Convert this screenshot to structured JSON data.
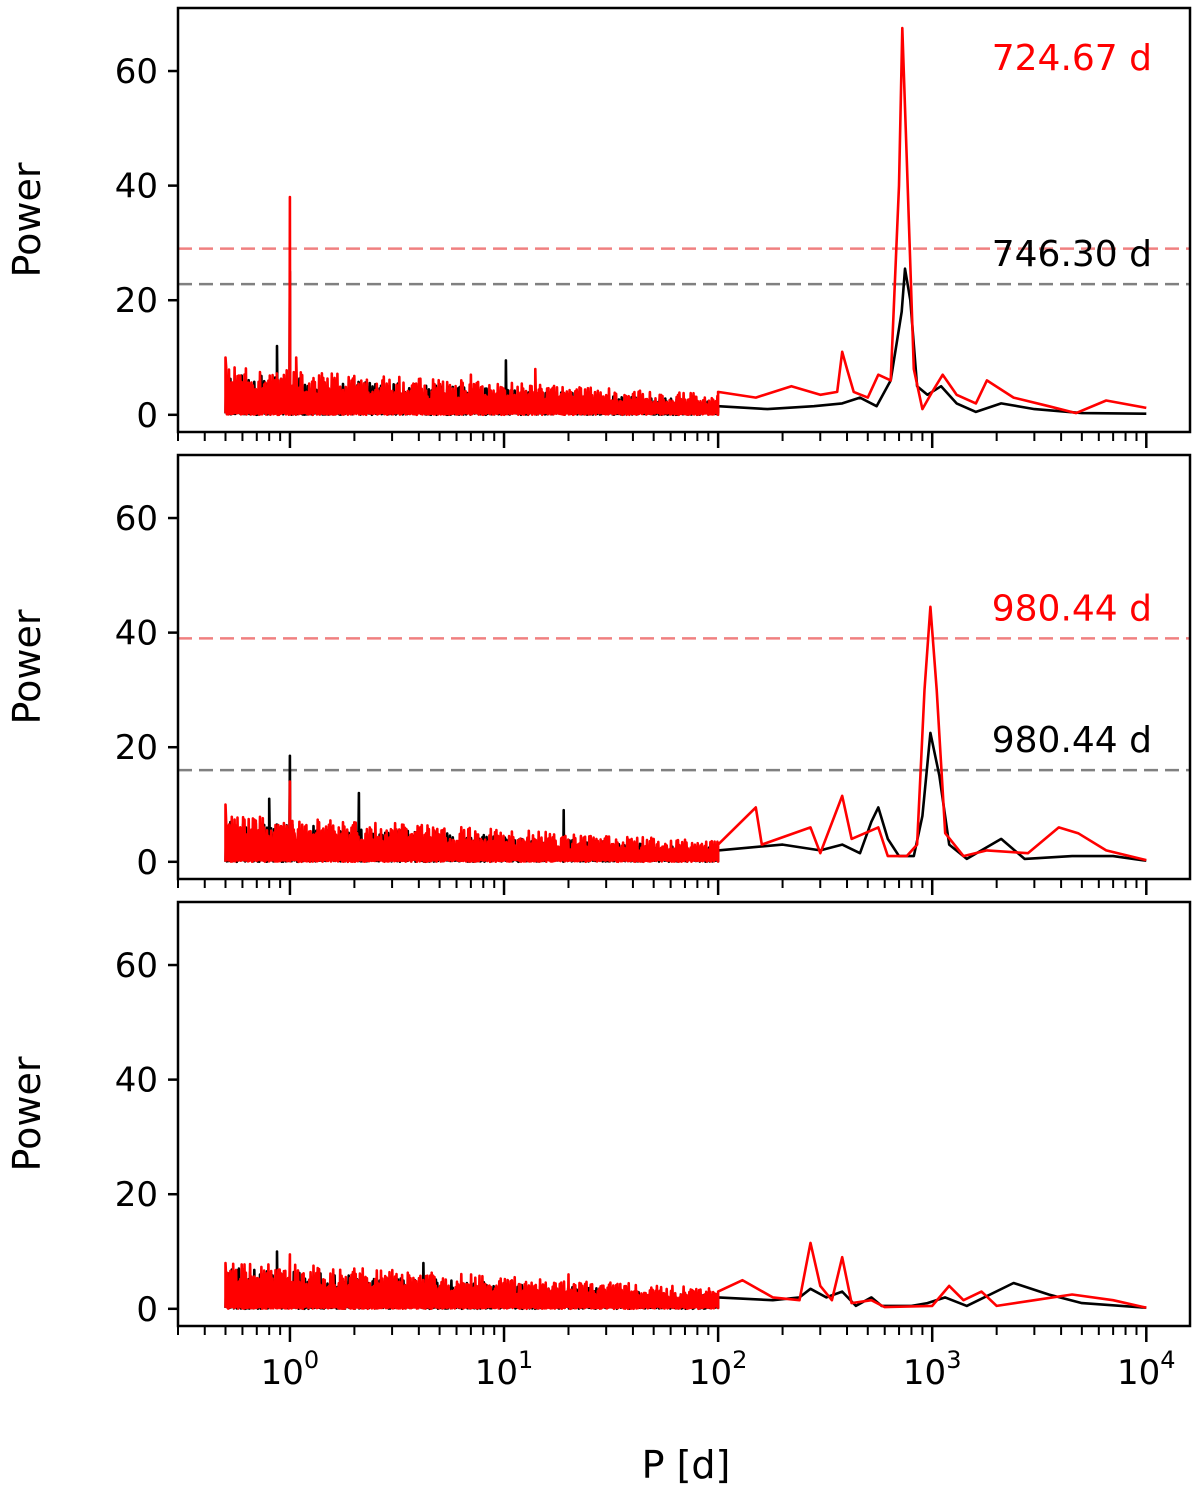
{
  "figure": {
    "xlabel": "P [d]",
    "x_tick_base": "10",
    "colors": {
      "black_series": "#000000",
      "red_series": "#ff0000",
      "red_threshold": "#f08080",
      "black_threshold": "#808080"
    }
  },
  "chart_data": [
    {
      "type": "line",
      "panel": "top",
      "ylabel": "Power",
      "x_scale": "log",
      "xlim": [
        0.3,
        16000
      ],
      "ylim": [
        -3,
        71
      ],
      "y_ticks": [
        0,
        20,
        40,
        60
      ],
      "x_ticks": [
        1,
        10,
        100,
        1000,
        10000
      ],
      "x_tick_labels": [
        "0",
        "1",
        "2",
        "3",
        "4"
      ],
      "thresholds": [
        {
          "series": "red",
          "value": 29
        },
        {
          "series": "black",
          "value": 22.8
        }
      ],
      "annotations": [
        {
          "series": "red",
          "text": "724.67 d",
          "position": "top-right"
        },
        {
          "series": "black",
          "text": "746.30 d",
          "position": "above black threshold, right"
        }
      ],
      "series": [
        {
          "color": "black",
          "noise_band": {
            "x_range": [
              0.5,
              100
            ],
            "level_start": 6,
            "level_end": 2
          },
          "points": [
            [
              0.87,
              12
            ],
            [
              1.0,
              25
            ],
            [
              10.2,
              9.5
            ],
            [
              100,
              1.5
            ],
            [
              170,
              1.0
            ],
            [
              280,
              1.5
            ],
            [
              380,
              2
            ],
            [
              460,
              3
            ],
            [
              550,
              1.5
            ],
            [
              640,
              6
            ],
            [
              720,
              18
            ],
            [
              746.3,
              25.5
            ],
            [
              790,
              20
            ],
            [
              850,
              5
            ],
            [
              950,
              3.5
            ],
            [
              1100,
              5
            ],
            [
              1300,
              2
            ],
            [
              1600,
              0.5
            ],
            [
              2100,
              2
            ],
            [
              3000,
              1
            ],
            [
              5000,
              0.3
            ],
            [
              10000,
              0.2
            ]
          ]
        },
        {
          "color": "red",
          "noise_band": {
            "x_range": [
              0.5,
              100
            ],
            "level_start": 7,
            "level_end": 3
          },
          "points": [
            [
              0.5,
              10
            ],
            [
              1.0,
              38
            ],
            [
              1.07,
              10
            ],
            [
              7,
              7
            ],
            [
              14,
              8
            ],
            [
              100,
              4
            ],
            [
              150,
              3
            ],
            [
              220,
              5
            ],
            [
              300,
              3.5
            ],
            [
              360,
              4
            ],
            [
              380,
              11
            ],
            [
              400,
              8
            ],
            [
              430,
              4
            ],
            [
              500,
              3
            ],
            [
              560,
              7
            ],
            [
              640,
              6
            ],
            [
              700,
              40
            ],
            [
              724.67,
              67.5
            ],
            [
              760,
              45
            ],
            [
              820,
              8
            ],
            [
              900,
              1
            ],
            [
              1000,
              4
            ],
            [
              1120,
              7
            ],
            [
              1300,
              3.5
            ],
            [
              1600,
              2
            ],
            [
              1800,
              6
            ],
            [
              2400,
              3
            ],
            [
              3500,
              1.5
            ],
            [
              4700,
              0.3
            ],
            [
              6500,
              2.5
            ],
            [
              10000,
              1.2
            ]
          ]
        }
      ]
    },
    {
      "type": "line",
      "panel": "middle",
      "ylabel": "Power",
      "x_scale": "log",
      "xlim": [
        0.3,
        16000
      ],
      "ylim": [
        -3,
        71
      ],
      "y_ticks": [
        0,
        20,
        40,
        60
      ],
      "x_ticks": [
        1,
        10,
        100,
        1000,
        10000
      ],
      "x_tick_labels": [
        "0",
        "1",
        "2",
        "3",
        "4"
      ],
      "thresholds": [
        {
          "series": "red",
          "value": 39
        },
        {
          "series": "black",
          "value": 16
        }
      ],
      "annotations": [
        {
          "series": "red",
          "text": "980.44 d",
          "position": "above red threshold, right"
        },
        {
          "series": "black",
          "text": "980.44 d",
          "position": "above black threshold, right"
        }
      ],
      "series": [
        {
          "color": "black",
          "noise_band": {
            "x_range": [
              0.5,
              100
            ],
            "level_start": 6,
            "level_end": 2
          },
          "points": [
            [
              0.8,
              11
            ],
            [
              1.0,
              18.5
            ],
            [
              2.1,
              12
            ],
            [
              19,
              9
            ],
            [
              100,
              2
            ],
            [
              200,
              3
            ],
            [
              300,
              2
            ],
            [
              380,
              3
            ],
            [
              460,
              1.5
            ],
            [
              520,
              7
            ],
            [
              560,
              9.5
            ],
            [
              620,
              4
            ],
            [
              700,
              1
            ],
            [
              820,
              1
            ],
            [
              900,
              8
            ],
            [
              980.44,
              22.5
            ],
            [
              1080,
              15
            ],
            [
              1200,
              3
            ],
            [
              1450,
              0.5
            ],
            [
              2100,
              4
            ],
            [
              2700,
              0.5
            ],
            [
              4500,
              1
            ],
            [
              7000,
              1
            ],
            [
              10000,
              0.2
            ]
          ]
        },
        {
          "color": "red",
          "noise_band": {
            "x_range": [
              0.5,
              100
            ],
            "level_start": 7,
            "level_end": 3
          },
          "points": [
            [
              0.5,
              10
            ],
            [
              1.0,
              14
            ],
            [
              1.05,
              5
            ],
            [
              50,
              4
            ],
            [
              100,
              3
            ],
            [
              150,
              9.5
            ],
            [
              160,
              3
            ],
            [
              270,
              6
            ],
            [
              300,
              1.5
            ],
            [
              380,
              11.5
            ],
            [
              420,
              4
            ],
            [
              560,
              6
            ],
            [
              620,
              1
            ],
            [
              760,
              1
            ],
            [
              850,
              3
            ],
            [
              920,
              30
            ],
            [
              980.44,
              44.5
            ],
            [
              1050,
              30
            ],
            [
              1150,
              5
            ],
            [
              1400,
              1
            ],
            [
              1800,
              2
            ],
            [
              2800,
              1.5
            ],
            [
              3900,
              6
            ],
            [
              4800,
              5
            ],
            [
              6500,
              2
            ],
            [
              10000,
              0.3
            ]
          ]
        }
      ]
    },
    {
      "type": "line",
      "panel": "bottom",
      "ylabel": "Power",
      "x_scale": "log",
      "xlim": [
        0.3,
        16000
      ],
      "ylim": [
        -3,
        71
      ],
      "y_ticks": [
        0,
        20,
        40,
        60
      ],
      "x_ticks": [
        1,
        10,
        100,
        1000,
        10000
      ],
      "x_tick_labels": [
        "0",
        "1",
        "2",
        "3",
        "4"
      ],
      "thresholds": [],
      "annotations": [],
      "series": [
        {
          "color": "black",
          "noise_band": {
            "x_range": [
              0.5,
              100
            ],
            "level_start": 6,
            "level_end": 2
          },
          "points": [
            [
              0.87,
              10
            ],
            [
              4.2,
              8
            ],
            [
              100,
              2
            ],
            [
              180,
              1.5
            ],
            [
              240,
              2
            ],
            [
              270,
              3.5
            ],
            [
              320,
              2
            ],
            [
              380,
              3
            ],
            [
              440,
              0.5
            ],
            [
              520,
              2
            ],
            [
              580,
              0.5
            ],
            [
              800,
              0.5
            ],
            [
              950,
              1
            ],
            [
              1150,
              2
            ],
            [
              1450,
              0.5
            ],
            [
              2400,
              4.5
            ],
            [
              3500,
              2.5
            ],
            [
              5000,
              1
            ],
            [
              10000,
              0.2
            ]
          ]
        },
        {
          "color": "red",
          "noise_band": {
            "x_range": [
              0.5,
              100
            ],
            "level_start": 7,
            "level_end": 3
          },
          "points": [
            [
              0.5,
              8
            ],
            [
              1.0,
              9.5
            ],
            [
              20,
              6
            ],
            [
              100,
              3
            ],
            [
              130,
              5
            ],
            [
              180,
              2
            ],
            [
              240,
              1.5
            ],
            [
              270,
              11.5
            ],
            [
              300,
              4
            ],
            [
              340,
              1.5
            ],
            [
              380,
              9
            ],
            [
              420,
              1
            ],
            [
              520,
              1.5
            ],
            [
              600,
              0.3
            ],
            [
              1000,
              0.5
            ],
            [
              1200,
              4
            ],
            [
              1400,
              1.5
            ],
            [
              1700,
              3
            ],
            [
              2000,
              0.5
            ],
            [
              3000,
              1.5
            ],
            [
              4500,
              2.5
            ],
            [
              7000,
              1.5
            ],
            [
              10000,
              0.2
            ]
          ]
        }
      ]
    }
  ]
}
